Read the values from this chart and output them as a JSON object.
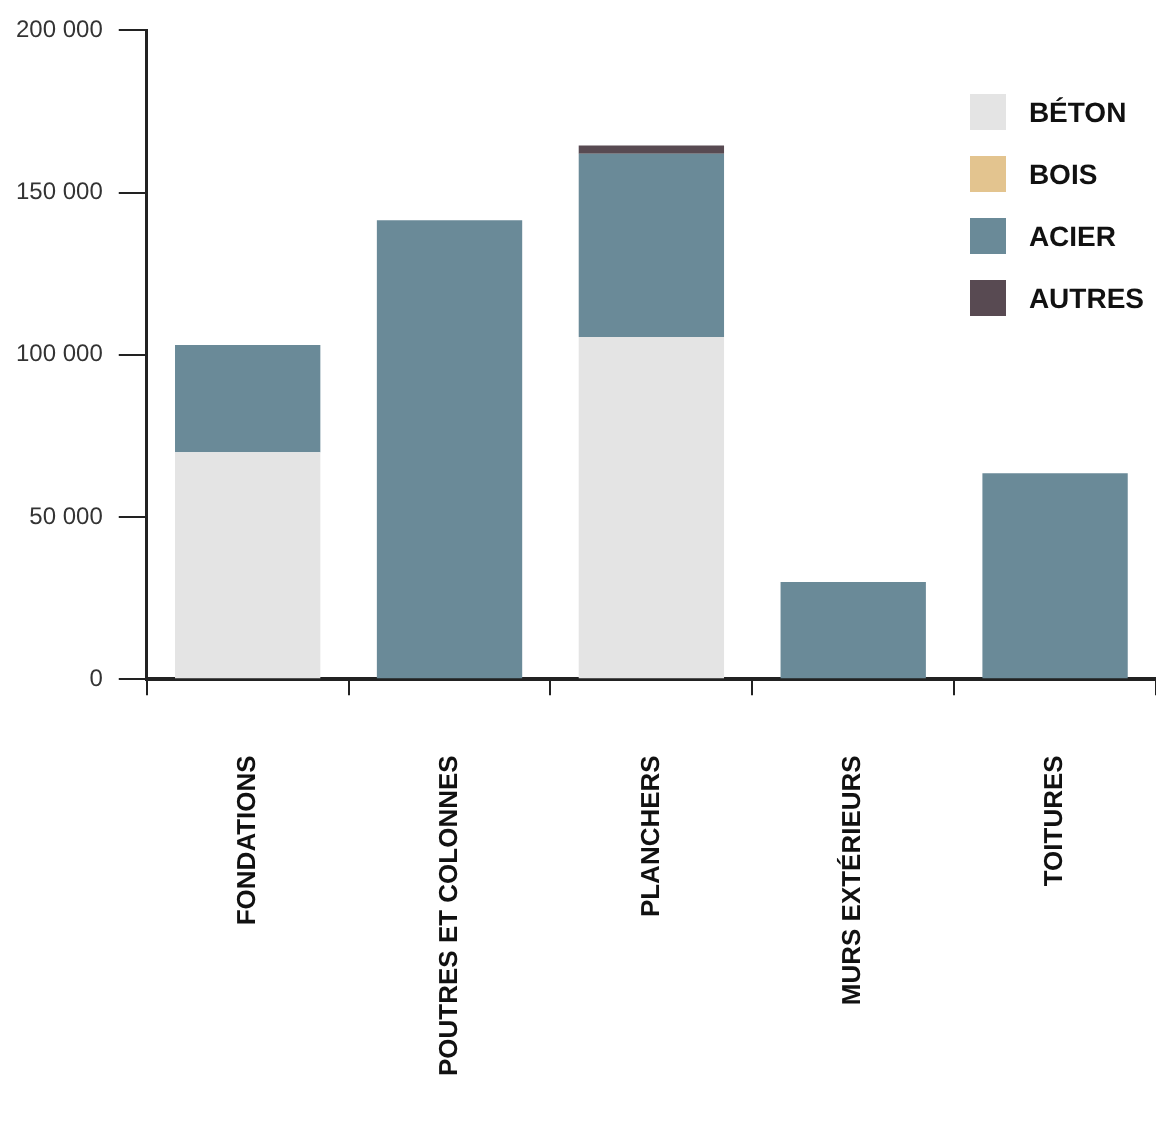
{
  "chart_data": {
    "type": "bar",
    "stacked": true,
    "categories": [
      "FONDATIONS",
      "POUTRES ET COLONNES",
      "PLANCHERS",
      "MURS EXTÉRIEURS",
      "TOITURES"
    ],
    "series": [
      {
        "name": "BÉTON",
        "color": "#e4e4e4",
        "values": [
          70000,
          0,
          105500,
          0,
          0
        ]
      },
      {
        "name": "BOIS",
        "color": "#e3c48f",
        "values": [
          0,
          0,
          0,
          0,
          0
        ]
      },
      {
        "name": "ACIER",
        "color": "#6a8a98",
        "values": [
          33000,
          141500,
          56500,
          30000,
          63500
        ]
      },
      {
        "name": "AUTRES",
        "color": "#584a52",
        "values": [
          0,
          0,
          2500,
          0,
          0
        ]
      }
    ],
    "ylim": [
      0,
      200000
    ],
    "yticks": [
      {
        "value": 0,
        "label": "0"
      },
      {
        "value": 50000,
        "label": "50 000"
      },
      {
        "value": 100000,
        "label": "100 000"
      },
      {
        "value": 150000,
        "label": "150 000"
      },
      {
        "value": 200000,
        "label": "200 000"
      }
    ],
    "grid": false,
    "legend": "top right"
  }
}
